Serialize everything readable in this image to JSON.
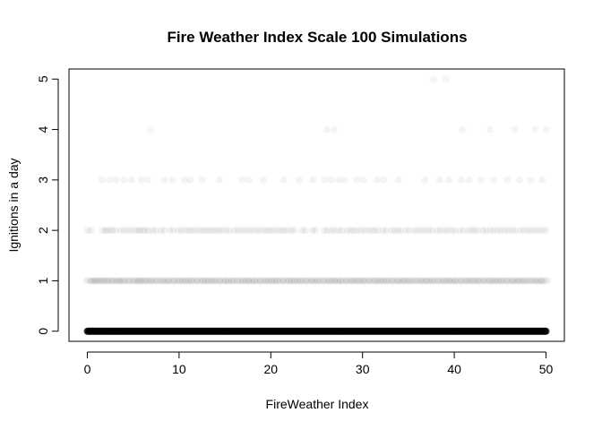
{
  "chart_data": {
    "type": "scatter",
    "title": "Fire Weather Index Scale 100 Simulations",
    "xlabel": "FireWeather Index",
    "ylabel": "Ignitions in a day",
    "xlim": [
      -2,
      52
    ],
    "ylim": [
      -0.2,
      5.2
    ],
    "x_ticks": [
      0,
      10,
      20,
      30,
      40,
      50
    ],
    "y_ticks": [
      0,
      1,
      2,
      3,
      4,
      5
    ],
    "grid": false,
    "legend": "none",
    "marker_color": "#000000",
    "series": [
      {
        "values_note_dense_band_at_y": 0,
        "points_y0_x_range": [
          0,
          50
        ],
        "points_y1_x": [
          0.3,
          0.8,
          1.3,
          1.9,
          2.4,
          3.1,
          3.6,
          4.2,
          4.9,
          5.5,
          6.0,
          6.6,
          7.2,
          7.9,
          8.5,
          9.1,
          9.8,
          10.4,
          11.0,
          11.6,
          12.3,
          12.9,
          13.5,
          14.1,
          14.8,
          15.4,
          16.0,
          16.7,
          17.3,
          17.9,
          18.5,
          19.2,
          19.8,
          20.4,
          21.0,
          21.7,
          22.3,
          22.9,
          23.5,
          24.2,
          24.8,
          25.4,
          26.1,
          26.7,
          27.3,
          27.9,
          28.6,
          29.2,
          29.8,
          30.4,
          31.1,
          31.7,
          32.3,
          32.9,
          33.6,
          34.2,
          34.8,
          35.4,
          36.1,
          36.7,
          37.3,
          37.9,
          38.6,
          39.2,
          39.8,
          40.4,
          41.1,
          41.7,
          42.3,
          42.9,
          43.6,
          44.2,
          44.8,
          45.4,
          46.1,
          46.7,
          47.3,
          47.9,
          48.6,
          49.2,
          49.8
        ],
        "points_y2_x": [
          0.2,
          1.8,
          2.3,
          2.9,
          3.8,
          4.6,
          5.4,
          5.9,
          6.5,
          7.3,
          8.2,
          9.2,
          10.1,
          10.9,
          11.6,
          12.4,
          13.1,
          13.8,
          14.5,
          15.3,
          16.2,
          17.0,
          17.8,
          18.6,
          19.4,
          20.1,
          20.9,
          21.6,
          22.4,
          23.6,
          24.7,
          26.0,
          26.8,
          27.6,
          28.5,
          29.2,
          30.0,
          30.8,
          31.5,
          32.4,
          33.3,
          34.0,
          34.9,
          35.8,
          36.6,
          37.4,
          38.3,
          39.1,
          39.9,
          40.8,
          41.7,
          42.4,
          43.3,
          44.1,
          44.9,
          45.7,
          46.5,
          47.4,
          48.2,
          49.0,
          49.8
        ],
        "points_y3_x": [
          1.6,
          2.4,
          3.1,
          4.0,
          4.8,
          5.9,
          6.6,
          8.4,
          9.3,
          10.6,
          11.2,
          12.5,
          14.4,
          16.9,
          17.6,
          19.2,
          21.4,
          23.1,
          24.6,
          25.9,
          26.6,
          27.4,
          28.0,
          29.4,
          30.1,
          31.6,
          32.3,
          33.9,
          36.8,
          38.4,
          39.4,
          40.8,
          41.6,
          42.9,
          44.3,
          45.8,
          47.1,
          48.3,
          49.6
        ],
        "points_y4_x": [
          6.9,
          26.1,
          26.9,
          40.9,
          43.9,
          46.6,
          48.8,
          50.0
        ],
        "points_y5_x": [
          37.7,
          39.1
        ]
      }
    ]
  }
}
